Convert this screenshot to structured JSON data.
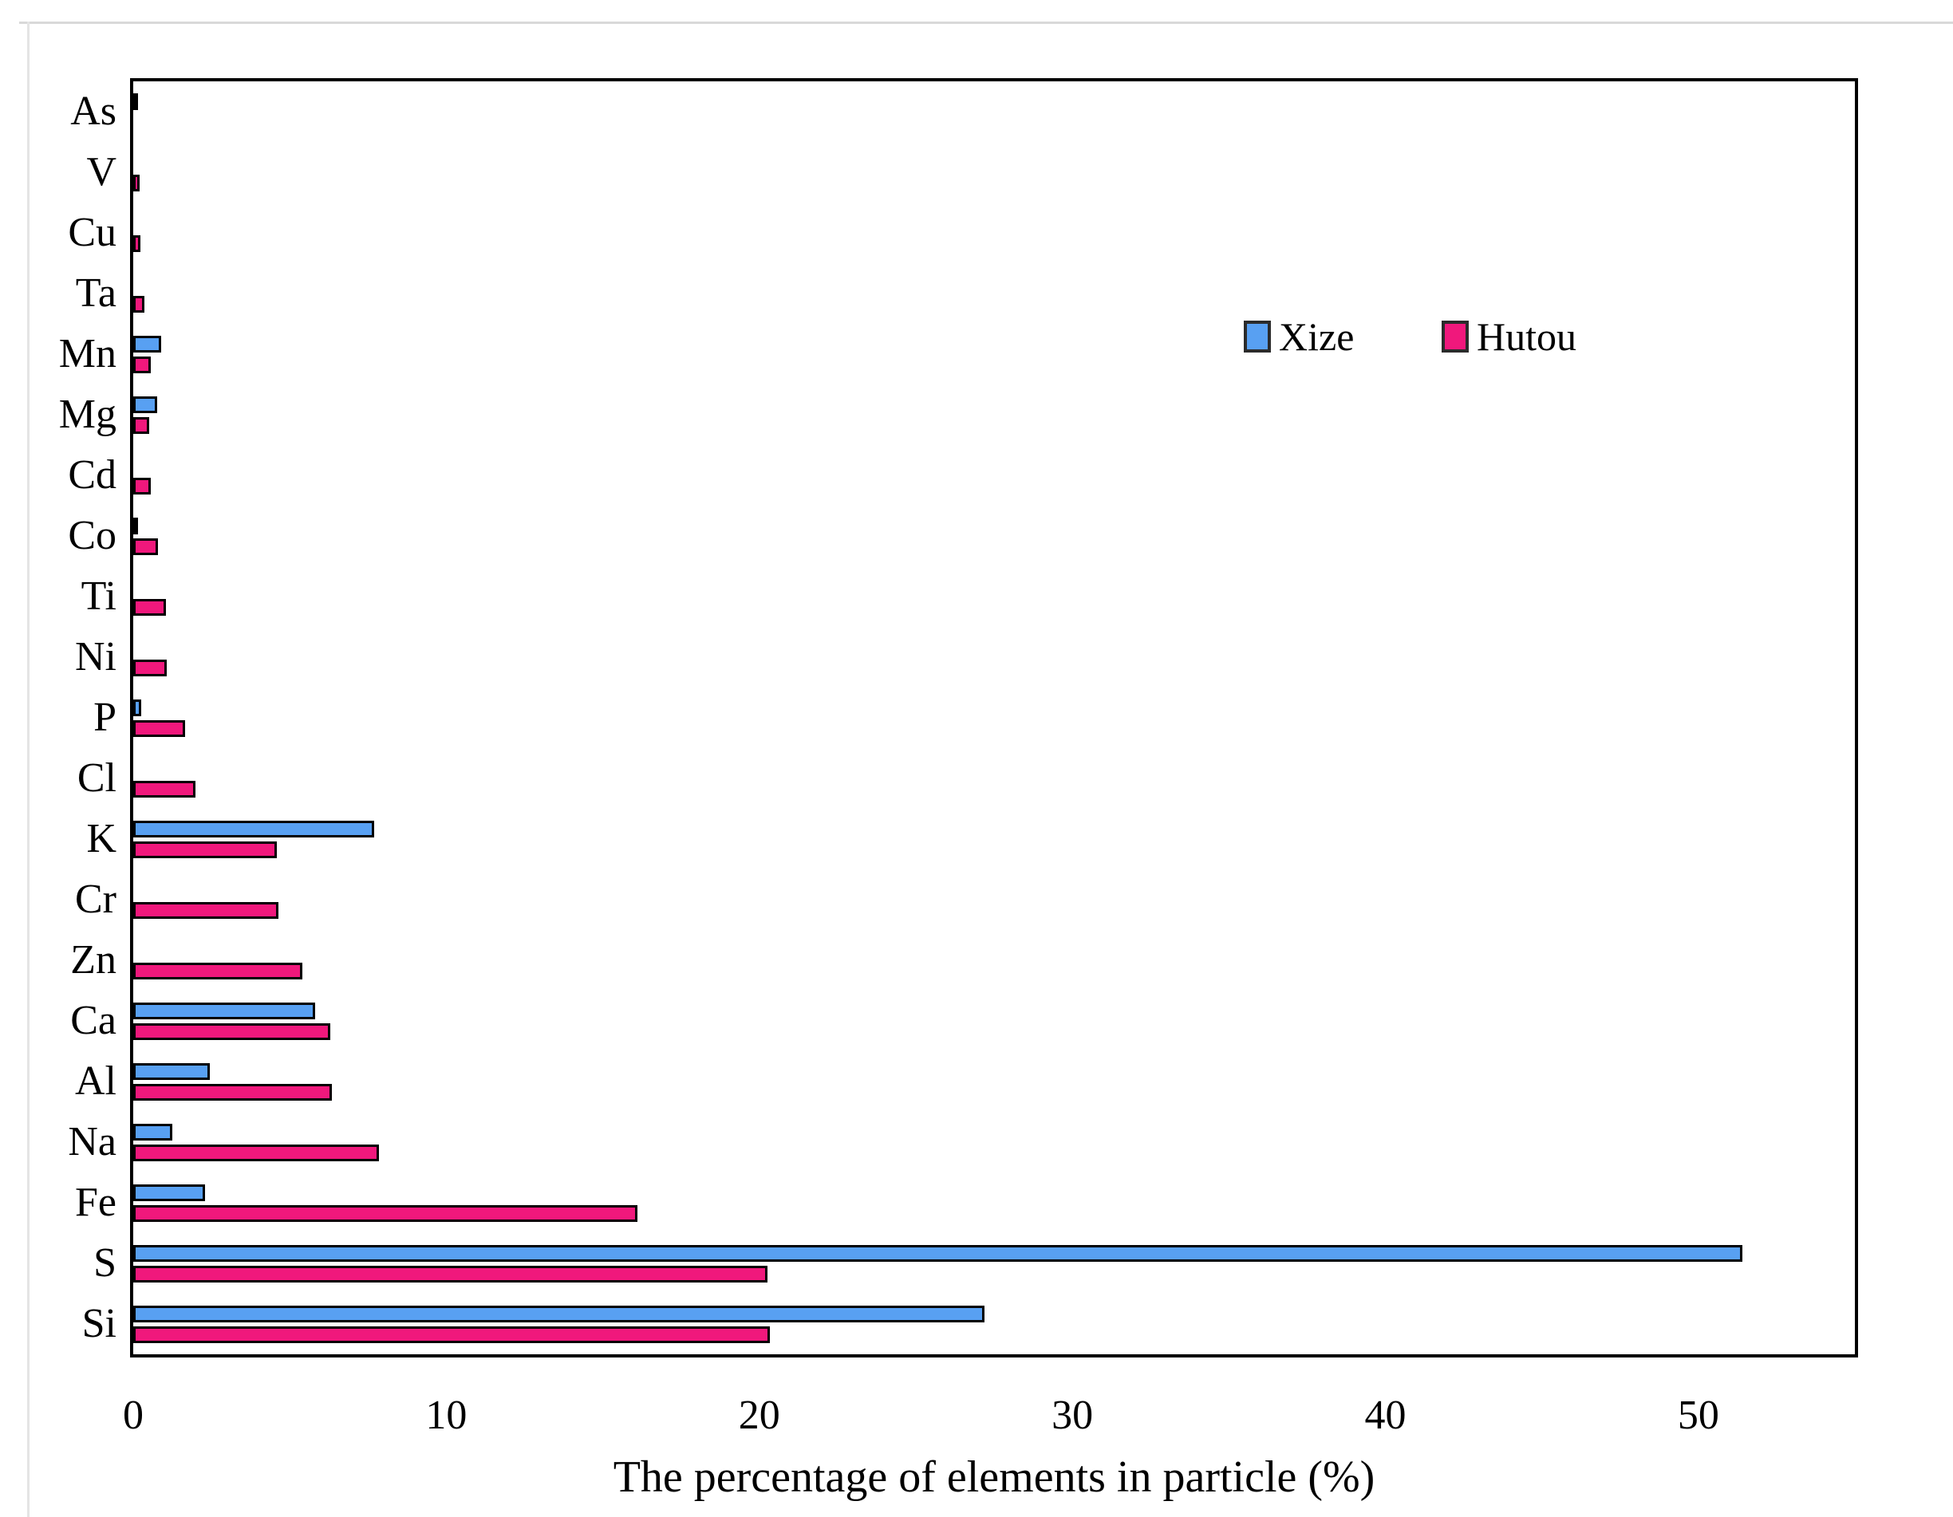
{
  "chart_data": {
    "type": "bar",
    "orientation": "horizontal",
    "title": "",
    "xlabel": "The percentage of elements in particle (%)",
    "ylabel": "",
    "categories": [
      "As",
      "V",
      "Cu",
      "Ta",
      "Mn",
      "Mg",
      "Cd",
      "Co",
      "Ti",
      "Ni",
      "P",
      "Cl",
      "K",
      "Cr",
      "Zn",
      "Ca",
      "Al",
      "Na",
      "Fe",
      "S",
      "Si"
    ],
    "series": [
      {
        "name": "Xize",
        "color": "#58a0f2",
        "values": [
          0.1,
          0,
          0,
          0,
          0.9,
          0.76,
          0,
          0.15,
          0,
          0,
          0.25,
          0,
          7.7,
          0,
          0,
          5.8,
          2.45,
          1.25,
          2.3,
          51.4,
          27.2
        ]
      },
      {
        "name": "Hutou",
        "color": "#f0187c",
        "values": [
          0,
          0.2,
          0.23,
          0.35,
          0.56,
          0.51,
          0.56,
          0.78,
          1.05,
          1.08,
          1.65,
          2.0,
          4.6,
          4.65,
          5.4,
          6.3,
          6.35,
          7.85,
          16.1,
          20.25,
          20.35
        ]
      }
    ],
    "xlim": [
      0,
      55
    ],
    "xticks": [
      0,
      10,
      20,
      30,
      40,
      50
    ],
    "grid": false,
    "bar_border_color": "#000000",
    "legend_position": "inside-upper-right"
  }
}
